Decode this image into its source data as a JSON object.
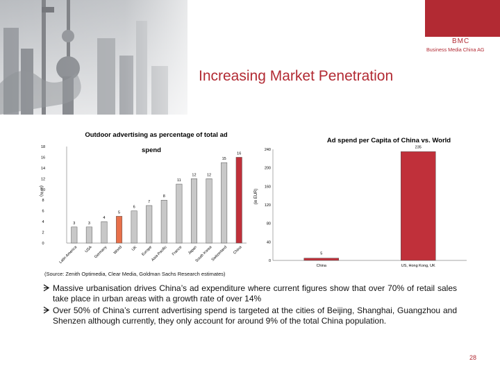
{
  "slide": {
    "title": "Increasing Market Penetration",
    "logo_name": "BMC",
    "logo_subtitle": "Business Media China AG",
    "page_number": "28",
    "accent_color": "#b22a33"
  },
  "source_note": "(Source: Zenith Optimedia, Clear Media, Goldman Sachs Research estimates)",
  "bullets": [
    "Massive urbanisation drives China’s ad expenditure where current figures show that over 70% of retail sales take place in urban areas with a growth rate of over 14%",
    "Over 50% of China’s current advertising spend is targeted at the cities of Beijing, Shanghai, Guangzhou and Shenzen although currently, they only account for around 9% of the total China population."
  ],
  "chart_data": [
    {
      "type": "bar",
      "title": "Outdoor advertising as percentage of total ad spend",
      "ylabel": "(in %)",
      "ylim": [
        0,
        18
      ],
      "yticks": [
        "0",
        "2",
        "4",
        "6",
        "8",
        "10",
        "12",
        "14",
        "16",
        "18"
      ],
      "categories": [
        "Latin America",
        "USA",
        "Germany",
        "World",
        "UK",
        "Europe",
        "Asia-Pacific",
        "France",
        "Japan",
        "South Korea",
        "Switzerland",
        "China"
      ],
      "values": [
        3,
        3,
        4,
        5,
        6,
        7,
        8,
        11,
        12,
        12,
        15,
        16
      ],
      "value_labels": [
        "3",
        "3",
        "4",
        "5",
        "6",
        "7",
        "8",
        "11",
        "12",
        "12",
        "15",
        "16"
      ],
      "highlight_colors": {
        "World": "#e8704a",
        "China": "#c0303a"
      },
      "bar_color": "#c8c8c8"
    },
    {
      "type": "bar",
      "title": "Ad spend per Capita of China vs. World",
      "ylabel": "(in EUR)",
      "ylim": [
        0,
        240
      ],
      "yticks": [
        "0",
        "40",
        "80",
        "120",
        "160",
        "200",
        "240"
      ],
      "categories": [
        "China",
        "US, Hong Kong, UK"
      ],
      "values": [
        5,
        235
      ],
      "value_labels": [
        "5",
        "235"
      ],
      "bar_colors": [
        "#c0303a",
        "#c0303a"
      ]
    }
  ]
}
